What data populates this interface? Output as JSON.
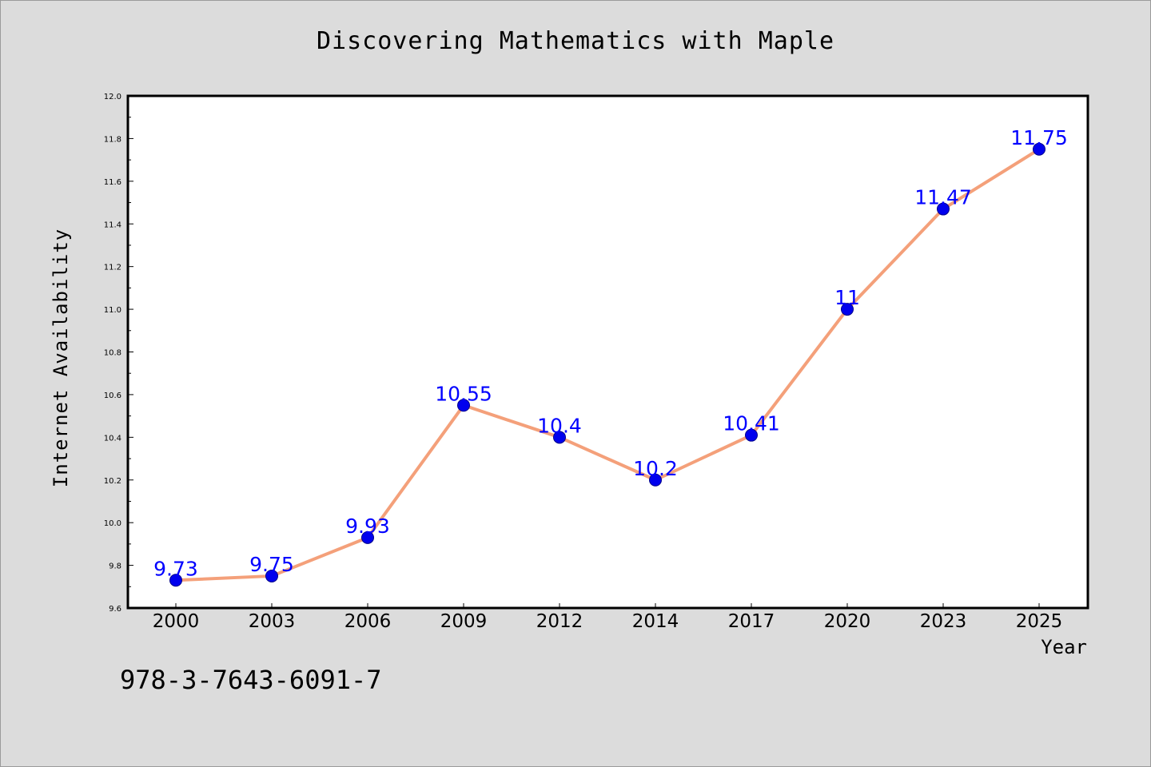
{
  "title": "Discovering Mathematics with Maple",
  "isbn": "978-3-7643-6091-7",
  "chart_data": {
    "type": "line",
    "title": "Discovering Mathematics with Maple",
    "xlabel": "Year",
    "ylabel": "Internet Availability",
    "categories": [
      "2000",
      "2003",
      "2006",
      "2009",
      "2012",
      "2014",
      "2017",
      "2020",
      "2023",
      "2025"
    ],
    "series": [
      {
        "values": [
          9.73,
          9.75,
          9.93,
          10.55,
          10.4,
          10.2,
          10.41,
          11,
          11.47,
          11.75
        ],
        "value_labels": [
          "9.73",
          "9.75",
          "9.93",
          "10.55",
          "10.4",
          "10.2",
          "10.41",
          "11",
          "11.47",
          "11.75"
        ]
      }
    ],
    "ylim": [
      9.6,
      12.0
    ],
    "yticks": [
      "9.6",
      "9.8",
      "10.0",
      "10.2",
      "10.4",
      "10.6",
      "10.8",
      "11.0",
      "11.2",
      "11.4",
      "11.6",
      "11.8",
      "12.0"
    ],
    "grid": false,
    "legend": "none",
    "colors": {
      "line": "#f4a07a",
      "marker": "#0000ee",
      "data_label": "#0000ff",
      "plot_background": "#ffffff",
      "page_background": "#dcdcdc"
    }
  }
}
